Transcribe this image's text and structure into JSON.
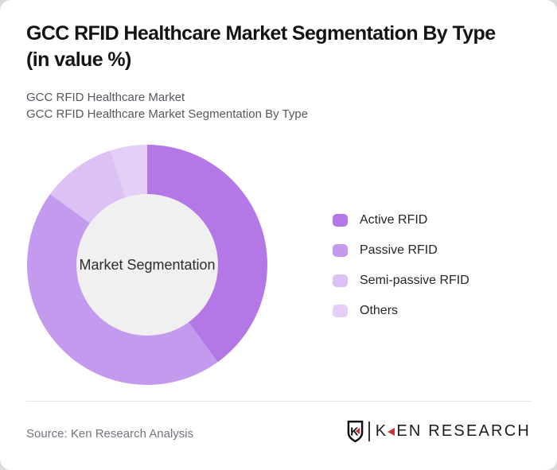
{
  "header": {
    "title_line1": "GCC RFID Healthcare Market Segmentation By Type",
    "title_line2": "(in value %)",
    "subtitle_line1": "GCC RFID Healthcare Market",
    "subtitle_line2": "GCC RFID Healthcare Market Segmentation By Type"
  },
  "chart_data": {
    "type": "pie",
    "variant": "donut",
    "title": "GCC RFID Healthcare Market Segmentation By Type (in value %)",
    "center_label": "Market Segmentation",
    "categories": [
      "Active RFID",
      "Passive RFID",
      "Semi-passive RFID",
      "Others"
    ],
    "values": [
      40,
      45,
      10,
      5
    ],
    "colors": [
      "#b477e6",
      "#c49aef",
      "#dcc2f4",
      "#e4cff7"
    ],
    "inner_circle_color": "#f0f0f0",
    "start_angle_deg": 0,
    "legend_position": "right"
  },
  "footer": {
    "source": "Source: Ken Research Analysis",
    "logo": {
      "shield_letter": "K",
      "brand_k": "K",
      "brand_rest": "EN RESEARCH",
      "accent_red": "#c4333c"
    }
  }
}
